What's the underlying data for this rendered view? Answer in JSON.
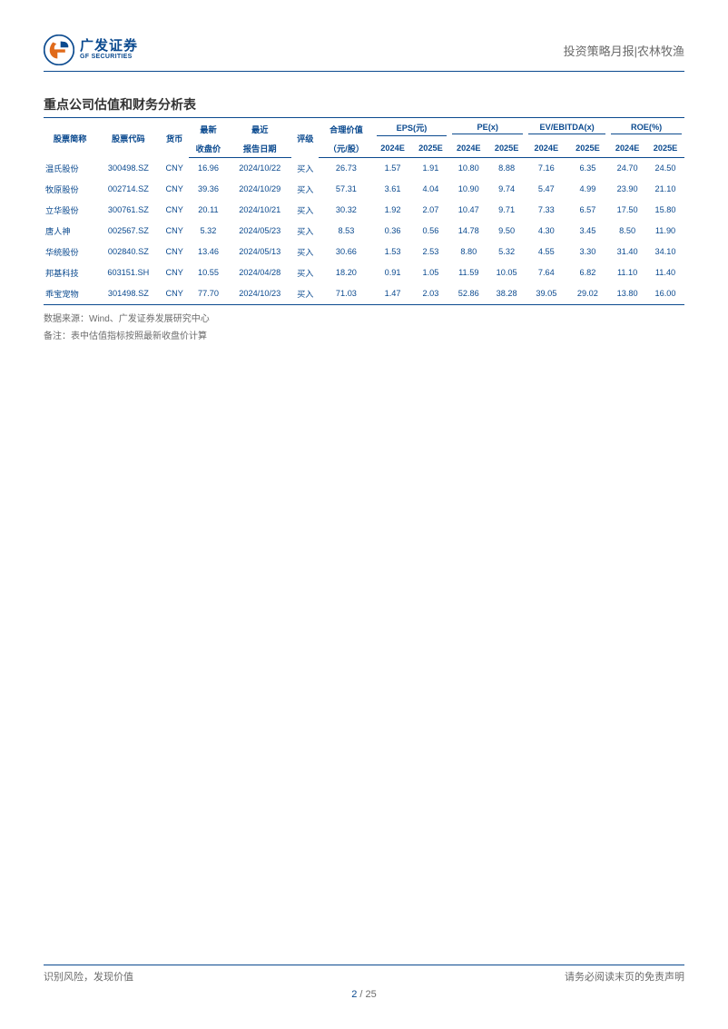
{
  "header": {
    "logo_cn": "广发证券",
    "logo_en": "GF SECURITIES",
    "right_text": "投资策略月报|农林牧渔"
  },
  "title": "重点公司估值和财务分析表",
  "table": {
    "head": {
      "c_name": "股票简称",
      "c_code": "股票代码",
      "c_ccy": "货币",
      "c_close_top": "最新",
      "c_close_bot": "收盘价",
      "c_rptdate_top": "最近",
      "c_rptdate_bot": "报告日期",
      "c_rating": "评级",
      "c_fair_top": "合理价值",
      "c_fair_bot": "（元/股）",
      "g_eps": "EPS(元)",
      "g_pe": "PE(x)",
      "g_ev": "EV/EBITDA(x)",
      "g_roe": "ROE(%)",
      "y24": "2024E",
      "y25": "2025E"
    },
    "rows": [
      {
        "name": "温氏股份",
        "code": "300498.SZ",
        "ccy": "CNY",
        "close": "16.96",
        "rptdate": "2024/10/22",
        "rating": "买入",
        "fair": "26.73",
        "eps24": "1.57",
        "eps25": "1.91",
        "pe24": "10.80",
        "pe25": "8.88",
        "ev24": "7.16",
        "ev25": "6.35",
        "roe24": "24.70",
        "roe25": "24.50"
      },
      {
        "name": "牧原股份",
        "code": "002714.SZ",
        "ccy": "CNY",
        "close": "39.36",
        "rptdate": "2024/10/29",
        "rating": "买入",
        "fair": "57.31",
        "eps24": "3.61",
        "eps25": "4.04",
        "pe24": "10.90",
        "pe25": "9.74",
        "ev24": "5.47",
        "ev25": "4.99",
        "roe24": "23.90",
        "roe25": "21.10"
      },
      {
        "name": "立华股份",
        "code": "300761.SZ",
        "ccy": "CNY",
        "close": "20.11",
        "rptdate": "2024/10/21",
        "rating": "买入",
        "fair": "30.32",
        "eps24": "1.92",
        "eps25": "2.07",
        "pe24": "10.47",
        "pe25": "9.71",
        "ev24": "7.33",
        "ev25": "6.57",
        "roe24": "17.50",
        "roe25": "15.80"
      },
      {
        "name": "唐人神",
        "code": "002567.SZ",
        "ccy": "CNY",
        "close": "5.32",
        "rptdate": "2024/05/23",
        "rating": "买入",
        "fair": "8.53",
        "eps24": "0.36",
        "eps25": "0.56",
        "pe24": "14.78",
        "pe25": "9.50",
        "ev24": "4.30",
        "ev25": "3.45",
        "roe24": "8.50",
        "roe25": "11.90"
      },
      {
        "name": "华统股份",
        "code": "002840.SZ",
        "ccy": "CNY",
        "close": "13.46",
        "rptdate": "2024/05/13",
        "rating": "买入",
        "fair": "30.66",
        "eps24": "1.53",
        "eps25": "2.53",
        "pe24": "8.80",
        "pe25": "5.32",
        "ev24": "4.55",
        "ev25": "3.30",
        "roe24": "31.40",
        "roe25": "34.10"
      },
      {
        "name": "邦基科技",
        "code": "603151.SH",
        "ccy": "CNY",
        "close": "10.55",
        "rptdate": "2024/04/28",
        "rating": "买入",
        "fair": "18.20",
        "eps24": "0.91",
        "eps25": "1.05",
        "pe24": "11.59",
        "pe25": "10.05",
        "ev24": "7.64",
        "ev25": "6.82",
        "roe24": "11.10",
        "roe25": "11.40"
      },
      {
        "name": "乖宝宠物",
        "code": "301498.SZ",
        "ccy": "CNY",
        "close": "77.70",
        "rptdate": "2024/10/23",
        "rating": "买入",
        "fair": "71.03",
        "eps24": "1.47",
        "eps25": "2.03",
        "pe24": "52.86",
        "pe25": "38.28",
        "ev24": "39.05",
        "ev25": "29.02",
        "roe24": "13.80",
        "roe25": "16.00"
      }
    ]
  },
  "notes": {
    "source": "数据来源：Wind、广发证券发展研究中心",
    "remark": "备注：表中估值指标按照最新收盘价计算"
  },
  "footer": {
    "left": "识别风险，发现价值",
    "right": "请务必阅读末页的免责声明",
    "page_cur": "2",
    "page_sep": " / ",
    "page_tot": "25"
  },
  "colors": {
    "primary": "#0b4a8f",
    "accent": "#e06a1a",
    "text_body": "#333333",
    "text_muted": "#6b6b6b",
    "background": "#ffffff"
  }
}
